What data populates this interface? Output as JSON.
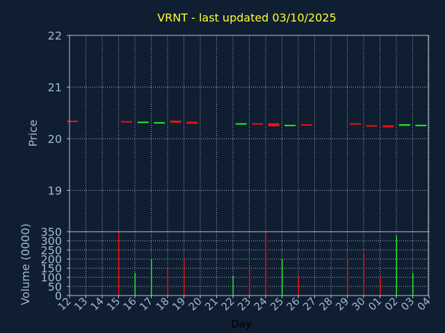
{
  "title": "VRNT - last updated 03/10/2025",
  "colors": {
    "up": "#22ee22",
    "down": "#ee1111",
    "background": "#0f1e31",
    "title": "#ffff33",
    "label": "#a3b8d2"
  },
  "chart_data": [
    {
      "type": "candlestick",
      "ylabel": "Price",
      "ylim": [
        18.2,
        22
      ],
      "yticks": [
        "19",
        "20",
        "21",
        "22"
      ],
      "grid": true,
      "candles": [
        {
          "day": "12",
          "open": 20.35,
          "close": 20.33,
          "dir": "down"
        },
        {
          "day": "15",
          "open": 20.34,
          "close": 20.32,
          "dir": "down"
        },
        {
          "day": "16",
          "open": 20.31,
          "close": 20.33,
          "dir": "up"
        },
        {
          "day": "17",
          "open": 20.3,
          "close": 20.32,
          "dir": "up"
        },
        {
          "day": "18",
          "open": 20.35,
          "close": 20.31,
          "dir": "down"
        },
        {
          "day": "19",
          "open": 20.33,
          "close": 20.29,
          "dir": "down"
        },
        {
          "day": "22",
          "open": 20.28,
          "close": 20.3,
          "dir": "up"
        },
        {
          "day": "23",
          "open": 20.3,
          "close": 20.28,
          "dir": "down"
        },
        {
          "day": "24",
          "open": 20.3,
          "close": 20.24,
          "dir": "down"
        },
        {
          "day": "25",
          "open": 20.25,
          "close": 20.27,
          "dir": "up"
        },
        {
          "day": "26",
          "open": 20.28,
          "close": 20.26,
          "dir": "down"
        },
        {
          "day": "29",
          "open": 20.3,
          "close": 20.28,
          "dir": "down"
        },
        {
          "day": "30",
          "open": 20.26,
          "close": 20.24,
          "dir": "down"
        },
        {
          "day": "01",
          "open": 20.26,
          "close": 20.22,
          "dir": "down"
        },
        {
          "day": "02",
          "open": 20.25,
          "close": 20.28,
          "dir": "up"
        },
        {
          "day": "03",
          "open": 20.25,
          "close": 20.27,
          "dir": "up"
        }
      ]
    },
    {
      "type": "bar",
      "ylabel": "Volume (0000)",
      "xlabel": "Day",
      "ylim": [
        0,
        350
      ],
      "yticks": [
        "0",
        "50",
        "100",
        "150",
        "200",
        "250",
        "300",
        "350"
      ],
      "grid": true,
      "categories": [
        "12",
        "13",
        "14",
        "15",
        "16",
        "17",
        "18",
        "19",
        "20",
        "21",
        "22",
        "23",
        "24",
        "25",
        "26",
        "27",
        "28",
        "29",
        "30",
        "01",
        "02",
        "03",
        "04"
      ],
      "bars": [
        {
          "day": "15",
          "value": 350,
          "dir": "down"
        },
        {
          "day": "16",
          "value": 125,
          "dir": "up"
        },
        {
          "day": "17",
          "value": 200,
          "dir": "up"
        },
        {
          "day": "18",
          "value": 150,
          "dir": "down"
        },
        {
          "day": "19",
          "value": 200,
          "dir": "down"
        },
        {
          "day": "22",
          "value": 110,
          "dir": "up"
        },
        {
          "day": "23",
          "value": 160,
          "dir": "down"
        },
        {
          "day": "24",
          "value": 350,
          "dir": "down"
        },
        {
          "day": "25",
          "value": 200,
          "dir": "up"
        },
        {
          "day": "26",
          "value": 105,
          "dir": "down"
        },
        {
          "day": "29",
          "value": 200,
          "dir": "down"
        },
        {
          "day": "30",
          "value": 235,
          "dir": "down"
        },
        {
          "day": "01",
          "value": 105,
          "dir": "down"
        },
        {
          "day": "02",
          "value": 330,
          "dir": "up"
        },
        {
          "day": "03",
          "value": 125,
          "dir": "up"
        }
      ]
    }
  ]
}
